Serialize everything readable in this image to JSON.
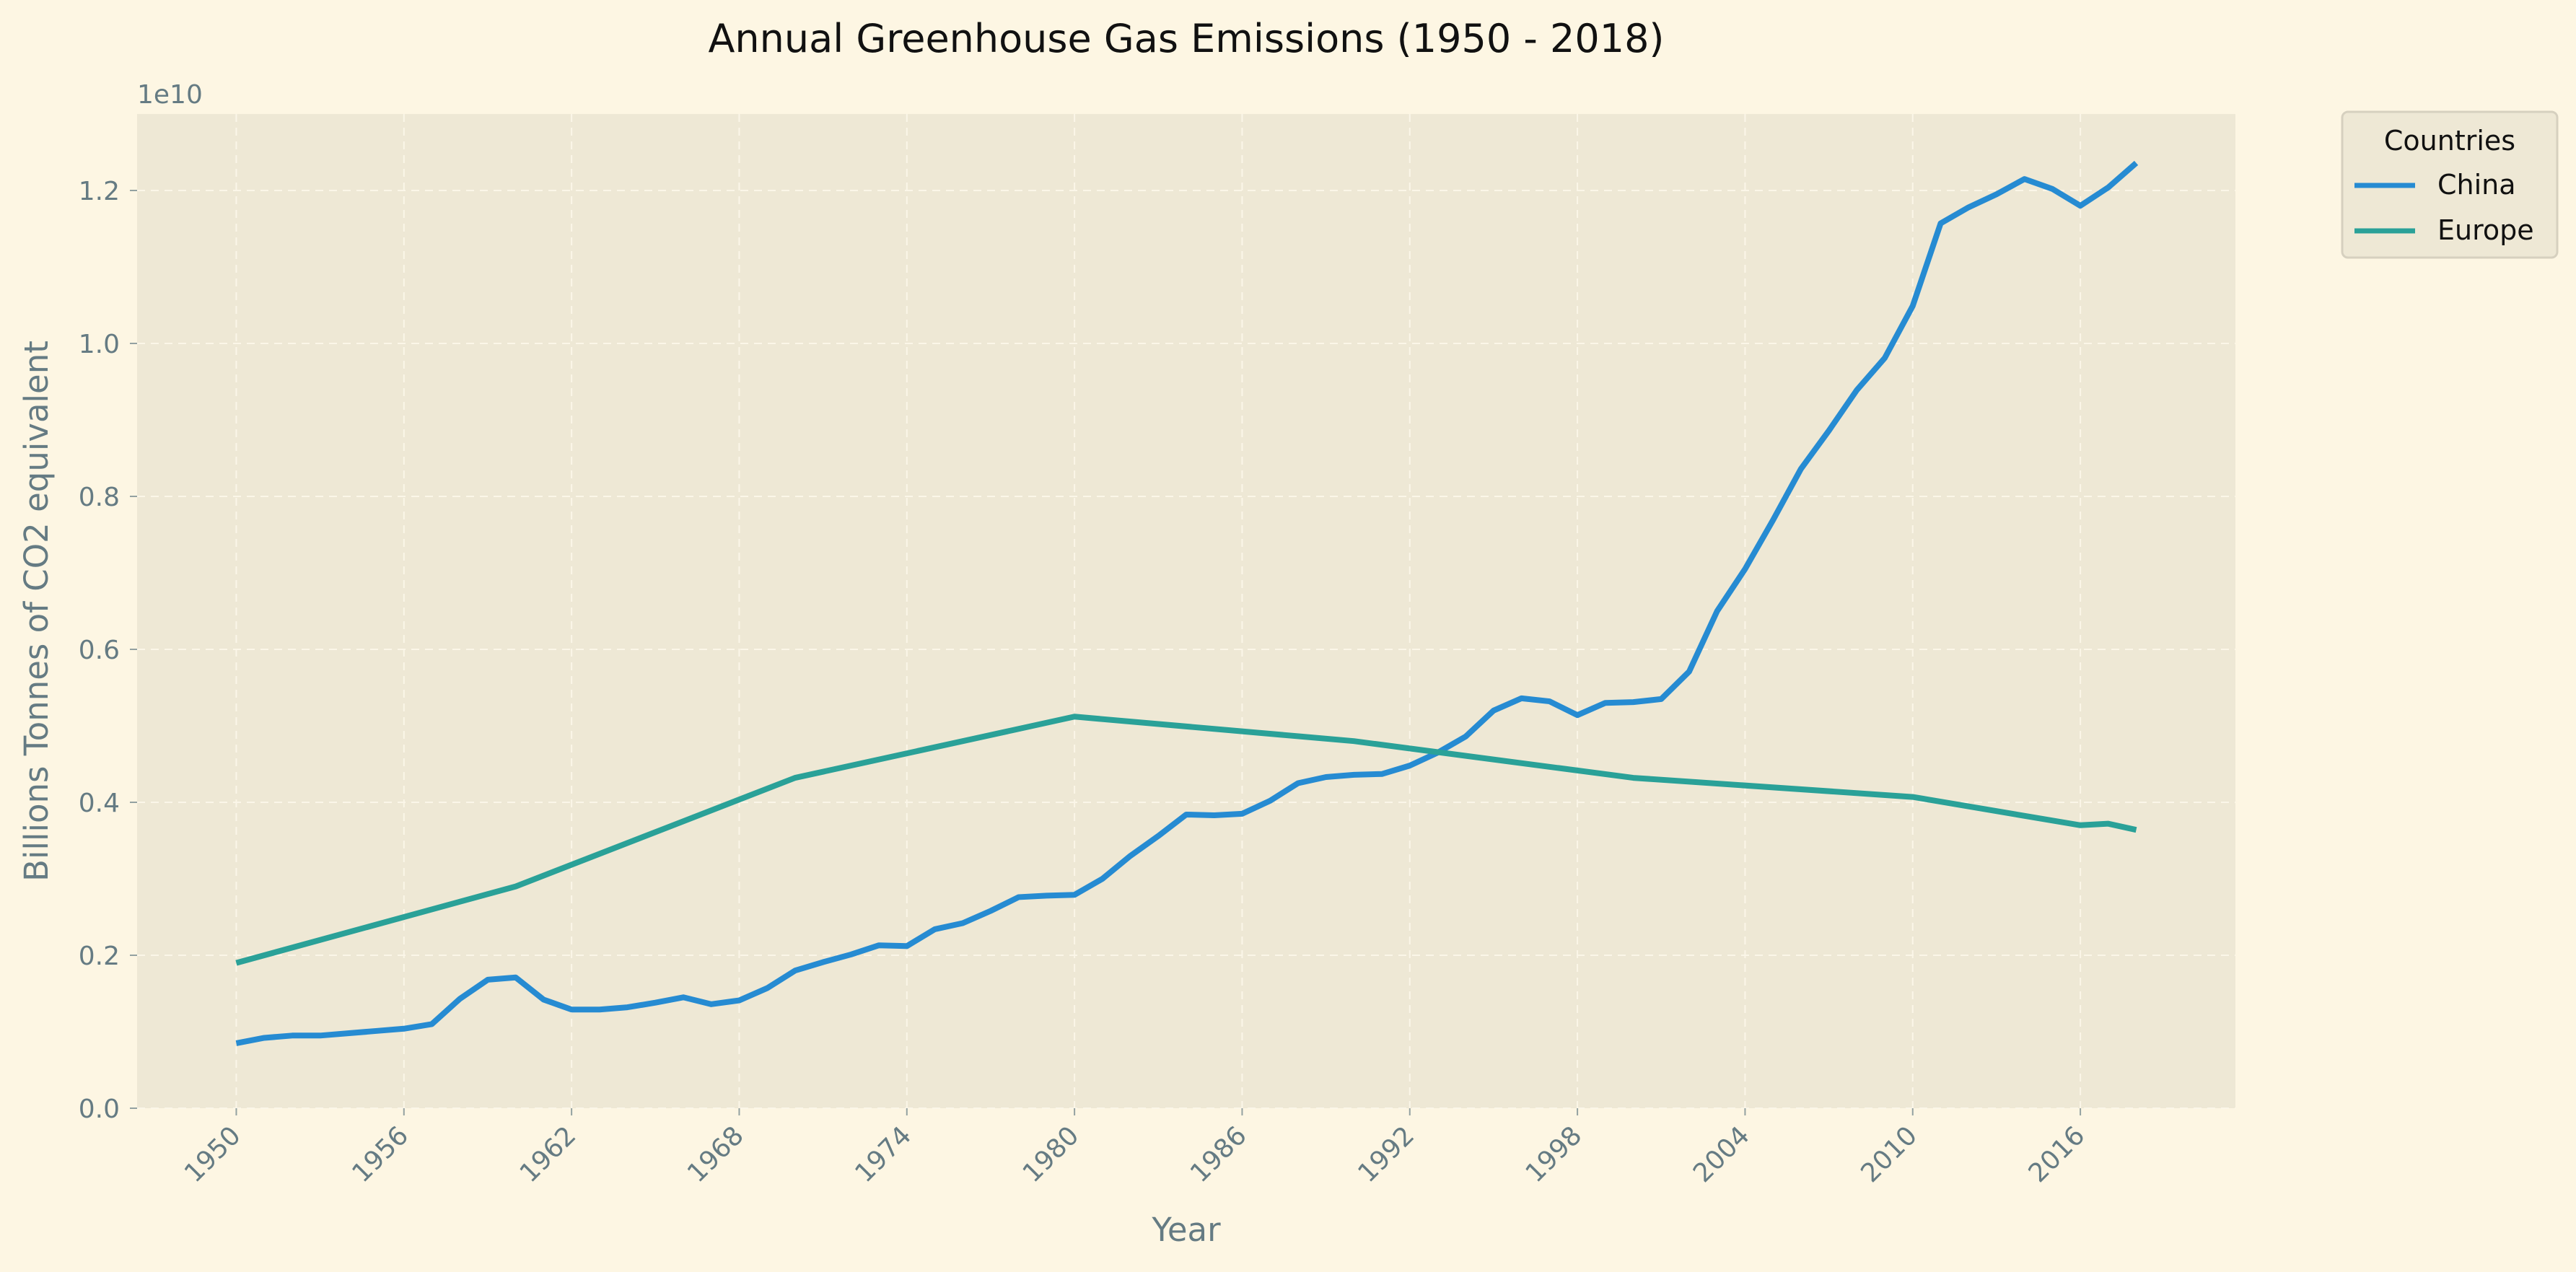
{
  "chart_data": {
    "type": "line",
    "title": "Annual Greenhouse Gas Emissions (1950 - 2018)",
    "xlabel": "Year",
    "ylabel": "Billions Tonnes of CO2 equivalent",
    "y_offset_label": "1e10",
    "xlim": [
      1946.45,
      2021.55
    ],
    "ylim": [
      0,
      1.3
    ],
    "x_ticks": [
      1950,
      1956,
      1962,
      1968,
      1974,
      1980,
      1986,
      1992,
      1998,
      2004,
      2010,
      2016
    ],
    "x_tick_labels": [
      "1950",
      "1956",
      "1962",
      "1968",
      "1974",
      "1980",
      "1986",
      "1992",
      "1998",
      "2004",
      "2010",
      "2016"
    ],
    "y_ticks": [
      0,
      0.2,
      0.4,
      0.6,
      0.8,
      1.0,
      1.2
    ],
    "y_tick_labels": [
      "0.0",
      "0.2",
      "0.4",
      "0.6",
      "0.8",
      "1.0",
      "1.2"
    ],
    "grid": true,
    "legend": {
      "title": "Countries",
      "placement": "outside top-right"
    },
    "series": [
      {
        "name": "China",
        "color": "#268bd2",
        "x": [
          1950,
          1951,
          1952,
          1953,
          1954,
          1955,
          1956,
          1957,
          1958,
          1959,
          1960,
          1961,
          1962,
          1963,
          1964,
          1965,
          1966,
          1967,
          1968,
          1969,
          1970,
          1971,
          1972,
          1973,
          1974,
          1975,
          1976,
          1977,
          1978,
          1979,
          1980,
          1981,
          1982,
          1983,
          1984,
          1985,
          1986,
          1987,
          1988,
          1989,
          1990,
          1991,
          1992,
          1993,
          1994,
          1995,
          1996,
          1997,
          1998,
          1999,
          2000,
          2001,
          2002,
          2003,
          2004,
          2005,
          2006,
          2007,
          2008,
          2009,
          2010,
          2011,
          2012,
          2013,
          2014,
          2015,
          2016,
          2017,
          2018
        ],
        "y": [
          0.085,
          0.092,
          0.095,
          0.095,
          0.098,
          0.101,
          0.104,
          0.11,
          0.143,
          0.168,
          0.171,
          0.142,
          0.129,
          0.129,
          0.132,
          0.138,
          0.145,
          0.136,
          0.141,
          0.157,
          0.18,
          0.191,
          0.201,
          0.213,
          0.212,
          0.234,
          0.242,
          0.258,
          0.276,
          0.278,
          0.279,
          0.3,
          0.33,
          0.356,
          0.384,
          0.383,
          0.385,
          0.402,
          0.425,
          0.433,
          0.436,
          0.437,
          0.448,
          0.465,
          0.486,
          0.52,
          0.536,
          0.532,
          0.514,
          0.53,
          0.531,
          0.535,
          0.571,
          0.65,
          0.705,
          0.769,
          0.836,
          0.886,
          0.939,
          0.981,
          1.049,
          1.157,
          1.178,
          1.195,
          1.215,
          1.202,
          1.18,
          1.204,
          1.236
        ]
      },
      {
        "name": "Europe",
        "color": "#2aa198",
        "x": [
          1950,
          1960,
          1970,
          1980,
          1990,
          2000,
          2010,
          2016,
          2017,
          2018
        ],
        "y": [
          0.19,
          0.29,
          0.432,
          0.512,
          0.48,
          0.432,
          0.407,
          0.37,
          0.372,
          0.364
        ]
      }
    ]
  }
}
